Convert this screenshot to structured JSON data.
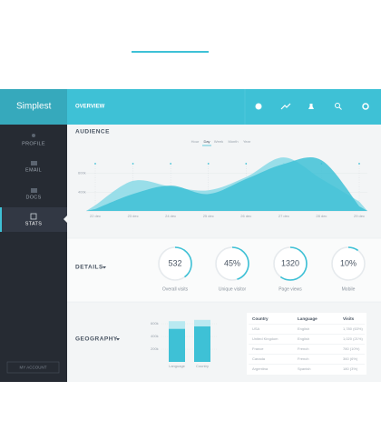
{
  "header": {
    "brand": "Simplest",
    "section": "OVERVIEW"
  },
  "sidebar": {
    "items": [
      "PROFILE",
      "EMAIL",
      "DOCS",
      "STATS"
    ],
    "account": "MY ACCOUNT"
  },
  "audience": {
    "title": "AUDIENCE",
    "tabs": [
      "Hour",
      "Day",
      "Week",
      "Month",
      "Year"
    ],
    "chart_data": {
      "type": "area",
      "x": [
        "22 dec",
        "23 dec",
        "24 dec",
        "25 dec",
        "26 dec",
        "27 dec",
        "28 dec",
        "29 dec"
      ],
      "ylim": [
        200000,
        800000
      ],
      "yticks": [
        {
          "value": 400000,
          "label": "400k"
        },
        {
          "value": 600000,
          "label": "600k"
        }
      ],
      "series": [
        {
          "color": "#8fdbe8",
          "values": [
            260000,
            520000,
            460000,
            420000,
            560000,
            770000,
            540000,
            300000
          ]
        },
        {
          "color": "#3ec1d6",
          "values": [
            220000,
            380000,
            470000,
            380000,
            540000,
            700000,
            740000,
            250000
          ]
        }
      ]
    }
  },
  "details": {
    "title": "DETAILS",
    "items": [
      {
        "value": "532",
        "label": "Overall visits"
      },
      {
        "value": "45%",
        "label": "Unique visitor"
      },
      {
        "value": "1320",
        "label": "Page views"
      },
      {
        "value": "10%",
        "label": "Mobile"
      }
    ]
  },
  "geography": {
    "title": "GEOGRAPHY",
    "chart_data": {
      "type": "bar",
      "categories": [
        "Language",
        "Country"
      ],
      "ylim": [
        0,
        800000
      ],
      "yticks": [
        {
          "value": 200000,
          "label": "200k"
        },
        {
          "value": 400000,
          "label": "400k"
        },
        {
          "value": 600000,
          "label": "600k"
        }
      ],
      "series": [
        {
          "color": "#3ec1d6",
          "values": [
            520000,
            560000
          ]
        },
        {
          "color": "#b9e9f1",
          "values": [
            120000,
            100000
          ]
        }
      ]
    },
    "table": {
      "columns": [
        "Country",
        "Language",
        "Visits"
      ],
      "rows": [
        [
          "USA",
          "English",
          "1,780 (63%)"
        ],
        [
          "United Kingdom",
          "English",
          "1,020 (21%)"
        ],
        [
          "France",
          "French",
          "780 (10%)"
        ],
        [
          "Canada",
          "French",
          "360 (6%)"
        ],
        [
          "Argentina",
          "Spanish",
          "180 (3%)"
        ]
      ]
    }
  }
}
